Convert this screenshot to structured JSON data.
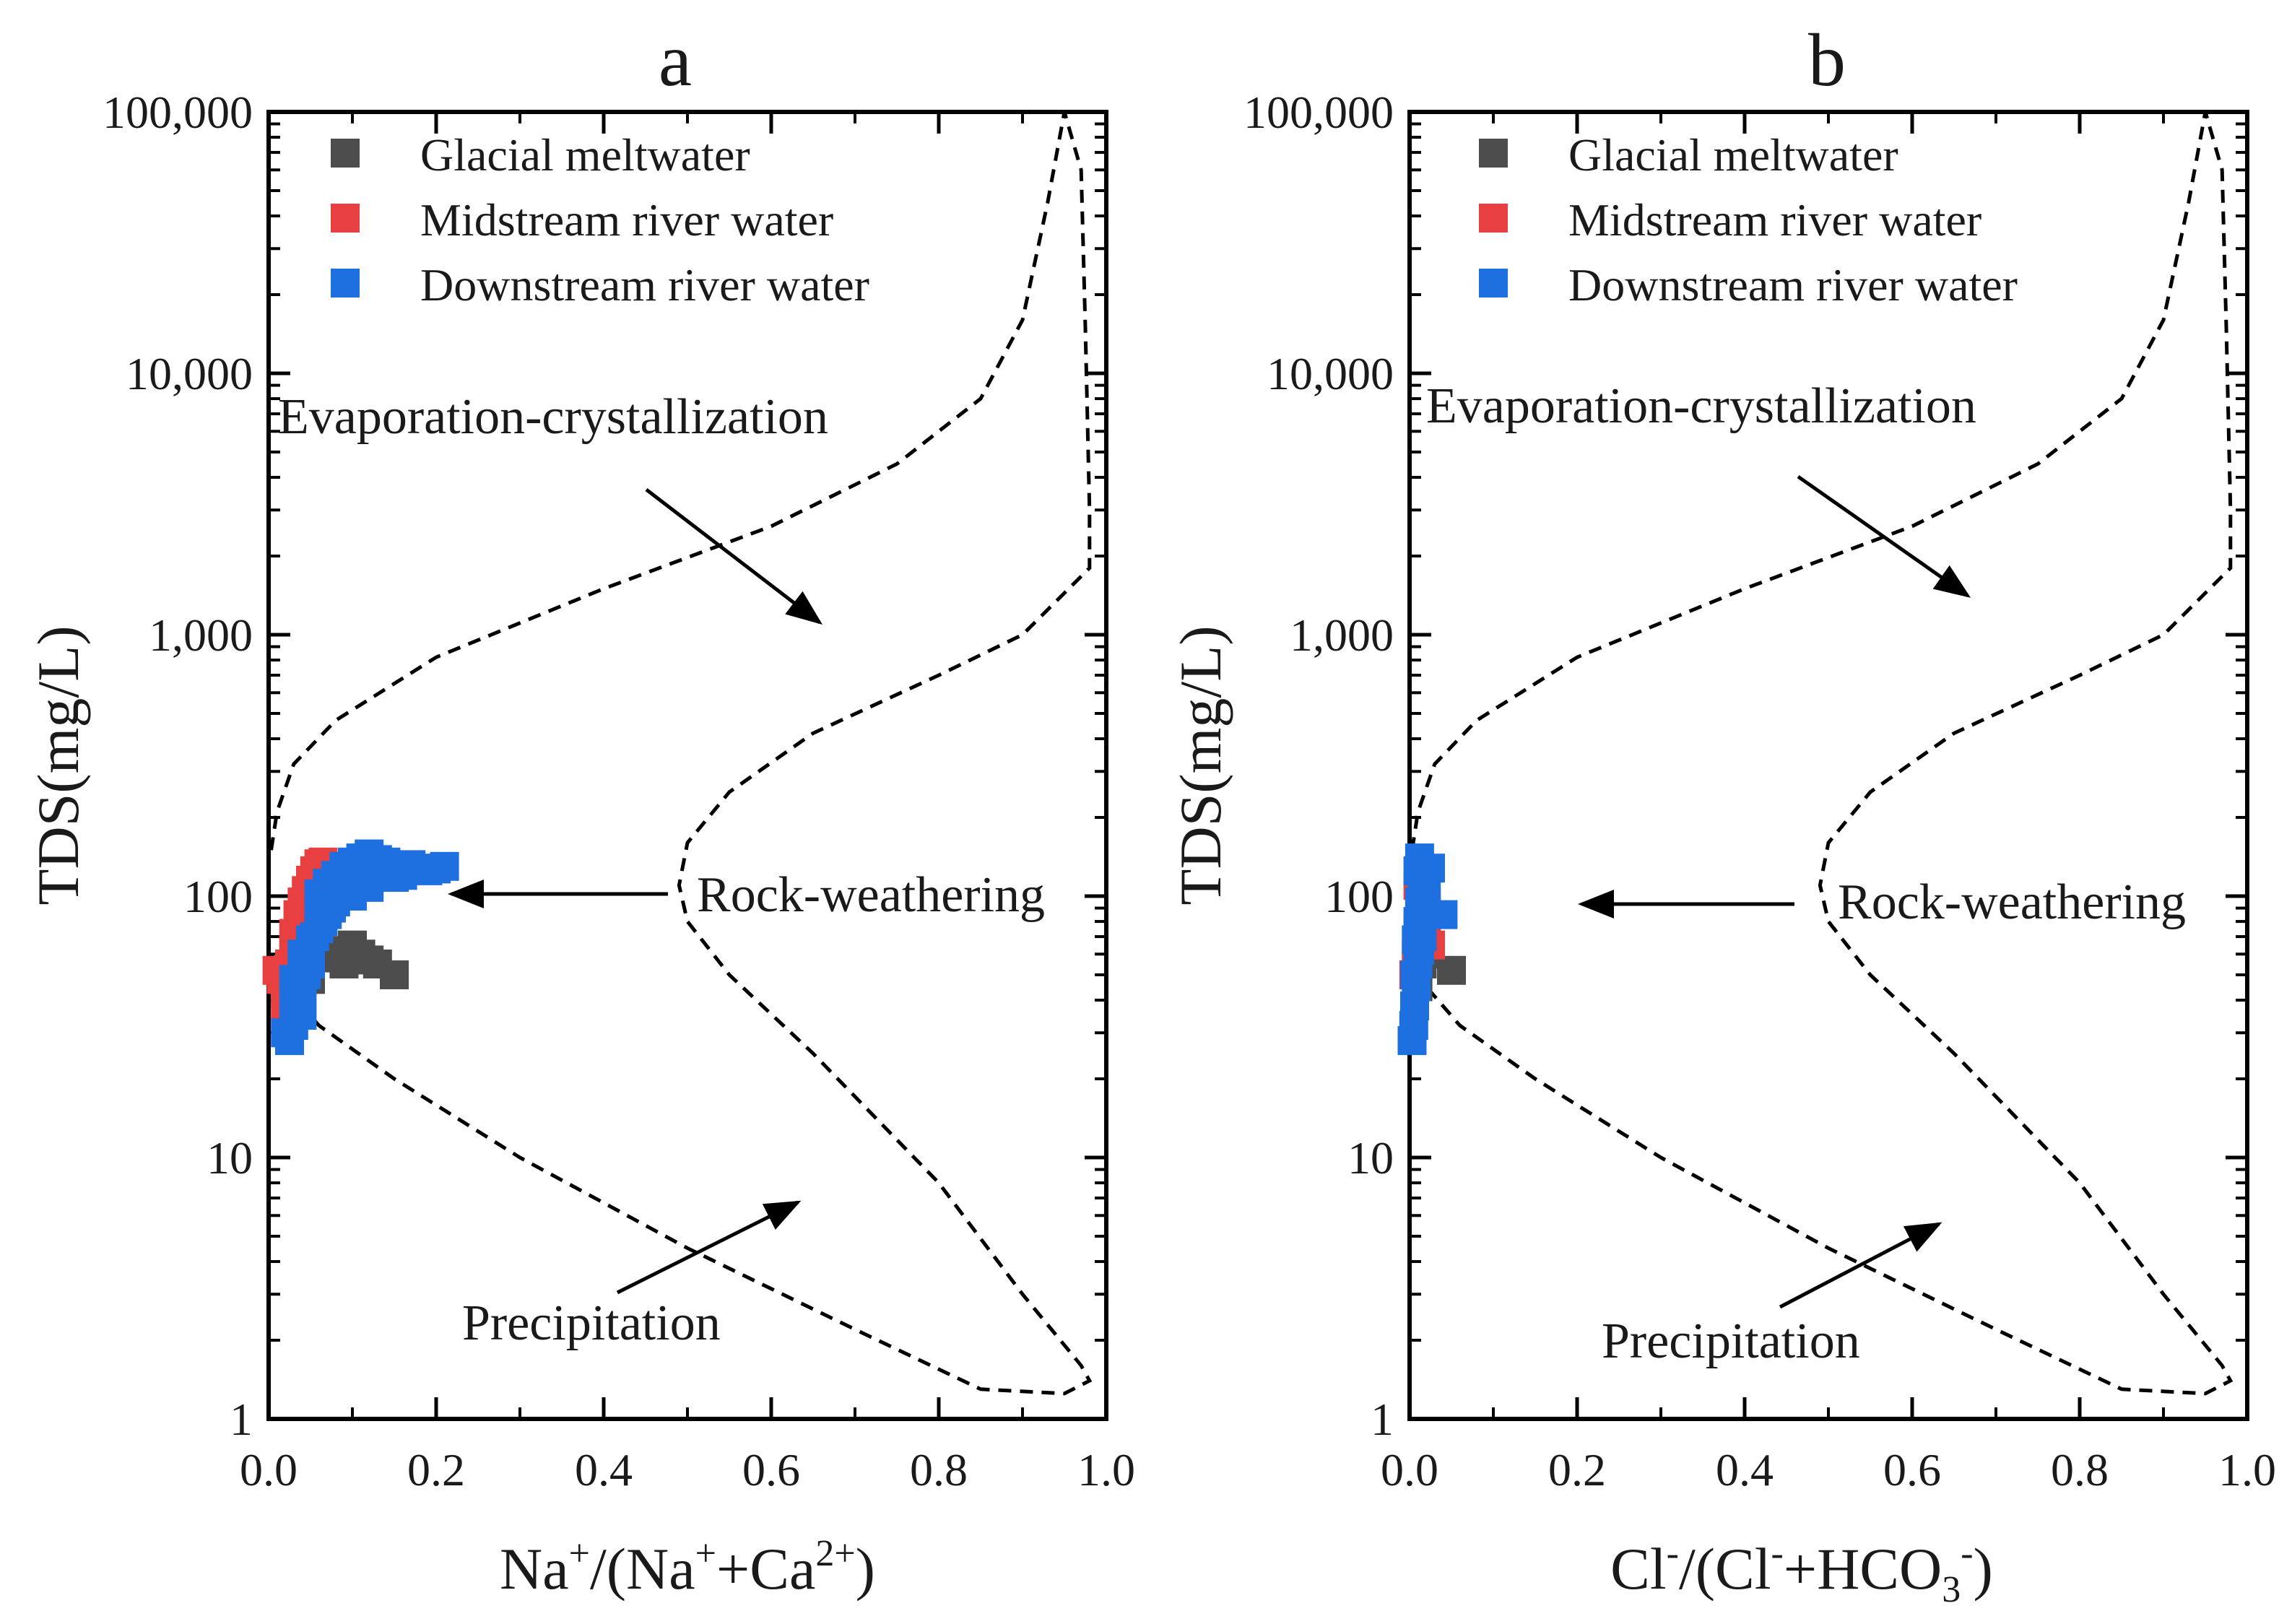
{
  "chart_data": [
    {
      "type": "scatter",
      "panel_label": "a",
      "xlabel": {
        "base": "Na",
        "parts": [
          [
            "Na",
            "+"
          ],
          [
            "/(Na",
            "+"
          ],
          [
            "+Ca",
            "2+"
          ],
          [
            ")",
            ""
          ]
        ]
      },
      "ylabel": "TDS(mg/L)",
      "xlim": [
        0.0,
        1.0
      ],
      "ylim": [
        1,
        100000
      ],
      "yscale": "log",
      "x_ticks": [
        "0.0",
        "0.2",
        "0.4",
        "0.6",
        "0.8",
        "1.0"
      ],
      "y_ticks": [
        "1",
        "10",
        "100",
        "1,000",
        "10,000",
        "100,000"
      ],
      "legend_position": "top-left",
      "series": [
        {
          "name": "Glacial meltwater",
          "color": "#4d4d4d",
          "points": [
            [
              0.03,
              45
            ],
            [
              0.05,
              52
            ],
            [
              0.06,
              60
            ],
            [
              0.07,
              58
            ],
            [
              0.08,
              62
            ],
            [
              0.09,
              55
            ],
            [
              0.1,
              65
            ],
            [
              0.11,
              60
            ],
            [
              0.12,
              57
            ],
            [
              0.13,
              55
            ],
            [
              0.15,
              50
            ],
            [
              0.05,
              48
            ],
            [
              0.04,
              55
            ]
          ]
        },
        {
          "name": "Midstream river water",
          "color": "#e84040",
          "points": [
            [
              0.01,
              52
            ],
            [
              0.015,
              48
            ],
            [
              0.02,
              42
            ],
            [
              0.02,
              38
            ],
            [
              0.025,
              55
            ],
            [
              0.03,
              62
            ],
            [
              0.03,
              72
            ],
            [
              0.035,
              85
            ],
            [
              0.04,
              95
            ],
            [
              0.045,
              105
            ],
            [
              0.05,
              115
            ],
            [
              0.055,
              125
            ],
            [
              0.06,
              133
            ],
            [
              0.065,
              135
            ],
            [
              0.07,
              128
            ],
            [
              0.04,
              80
            ],
            [
              0.05,
              100
            ],
            [
              0.06,
              118
            ]
          ]
        },
        {
          "name": "Downstream river water",
          "color": "#1e6fe0",
          "points": [
            [
              0.02,
              30
            ],
            [
              0.025,
              28
            ],
            [
              0.03,
              32
            ],
            [
              0.03,
              38
            ],
            [
              0.035,
              42
            ],
            [
              0.04,
              45
            ],
            [
              0.045,
              50
            ],
            [
              0.05,
              55
            ],
            [
              0.05,
              62
            ],
            [
              0.055,
              70
            ],
            [
              0.06,
              75
            ],
            [
              0.065,
              80
            ],
            [
              0.07,
              85
            ],
            [
              0.075,
              90
            ],
            [
              0.08,
              95
            ],
            [
              0.085,
              100
            ],
            [
              0.09,
              105
            ],
            [
              0.1,
              110
            ],
            [
              0.11,
              115
            ],
            [
              0.12,
              118
            ],
            [
              0.13,
              122
            ],
            [
              0.14,
              125
            ],
            [
              0.15,
              128
            ],
            [
              0.16,
              130
            ],
            [
              0.17,
              132
            ],
            [
              0.18,
              128
            ],
            [
              0.19,
              125
            ],
            [
              0.2,
              127
            ],
            [
              0.21,
              130
            ],
            [
              0.08,
              120
            ],
            [
              0.09,
              130
            ],
            [
              0.1,
              135
            ],
            [
              0.11,
              140
            ],
            [
              0.12,
              145
            ],
            [
              0.13,
              138
            ],
            [
              0.14,
              135
            ],
            [
              0.15,
              118
            ],
            [
              0.16,
              120
            ],
            [
              0.04,
              60
            ],
            [
              0.05,
              68
            ],
            [
              0.06,
              88
            ],
            [
              0.07,
              96
            ],
            [
              0.03,
              48
            ],
            [
              0.04,
              35
            ],
            [
              0.06,
              102
            ],
            [
              0.07,
              112
            ],
            [
              0.1,
              100
            ],
            [
              0.12,
              108
            ]
          ]
        }
      ],
      "annotations": [
        "Evaporation-crystallization",
        "Rock-weathering",
        "Precipitation"
      ]
    },
    {
      "type": "scatter",
      "panel_label": "b",
      "xlabel": {
        "parts": [
          [
            "Cl",
            "-"
          ],
          [
            "/(Cl",
            "-"
          ],
          [
            "+HCO",
            "3",
            "-"
          ],
          [
            ")",
            ""
          ]
        ]
      },
      "ylabel": "TDS(mg/L)",
      "xlim": [
        0.0,
        1.0
      ],
      "ylim": [
        1,
        100000
      ],
      "yscale": "log",
      "x_ticks": [
        "0.0",
        "0.2",
        "0.4",
        "0.6",
        "0.8",
        "1.0"
      ],
      "y_ticks": [
        "1",
        "10",
        "100",
        "1,000",
        "10,000",
        "100,000"
      ],
      "legend_position": "top-left",
      "series": [
        {
          "name": "Glacial meltwater",
          "color": "#4d4d4d",
          "points": [
            [
              0.01,
              45
            ],
            [
              0.015,
              55
            ],
            [
              0.02,
              60
            ],
            [
              0.05,
              52
            ]
          ]
        },
        {
          "name": "Midstream river water",
          "color": "#e84040",
          "points": [
            [
              0.005,
              50
            ],
            [
              0.008,
              60
            ],
            [
              0.01,
              75
            ],
            [
              0.012,
              90
            ],
            [
              0.015,
              100
            ],
            [
              0.02,
              95
            ],
            [
              0.01,
              110
            ],
            [
              0.015,
              120
            ],
            [
              0.02,
              70
            ],
            [
              0.025,
              65
            ]
          ]
        },
        {
          "name": "Downstream river water",
          "color": "#1e6fe0",
          "points": [
            [
              0.003,
              28
            ],
            [
              0.005,
              32
            ],
            [
              0.006,
              38
            ],
            [
              0.008,
              45
            ],
            [
              0.01,
              55
            ],
            [
              0.012,
              62
            ],
            [
              0.015,
              70
            ],
            [
              0.01,
              80
            ],
            [
              0.012,
              95
            ],
            [
              0.015,
              105
            ],
            [
              0.018,
              115
            ],
            [
              0.01,
              125
            ],
            [
              0.012,
              140
            ],
            [
              0.02,
              100
            ],
            [
              0.025,
              128
            ],
            [
              0.04,
              85
            ],
            [
              0.008,
              68
            ],
            [
              0.006,
              50
            ]
          ]
        }
      ],
      "annotations": [
        "Evaporation-crystallization",
        "Rock-weathering",
        "Precipitation"
      ]
    }
  ]
}
